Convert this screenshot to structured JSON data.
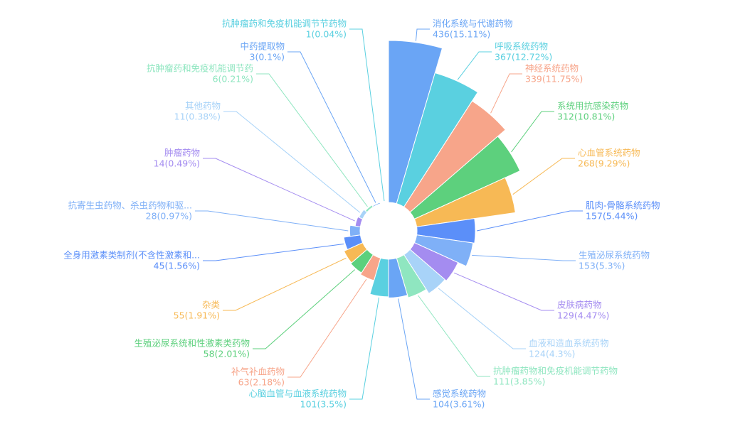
{
  "chart_data": {
    "type": "pie",
    "rose": true,
    "categories": [
      "消化系统与代谢药物",
      "呼吸系统药物",
      "神经系统药物",
      "系统用抗感染药物",
      "心血管系统药物",
      "肌肉-骨骼系统药物",
      "生殖泌尿系统药物",
      "皮肤病药物",
      "血液和造血系统药物",
      "抗肿瘤药物和免疫机能调节药物",
      "感觉系统药物",
      "心脑血管与血液系统药物",
      "补气补血药物",
      "生殖泌尿系统和性激素类药物",
      "杂类",
      "全身用激素类制剂(不含性激素和...",
      "抗寄生虫药物、杀虫药物和驱...",
      "肿瘤药物",
      "其他药物",
      "抗肿瘤药和免疫机能调节药",
      "中药提取物",
      "抗肿瘤药和免疫机能调节节药物"
    ],
    "values": [
      436,
      367,
      339,
      312,
      268,
      157,
      153,
      129,
      124,
      111,
      104,
      101,
      63,
      58,
      55,
      45,
      28,
      14,
      11,
      6,
      3,
      1
    ],
    "value_labels": [
      "436(15.11%)",
      "367(12.72%)",
      "339(11.75%)",
      "312(10.81%)",
      "268(9.29%)",
      "157(5.44%)",
      "153(5.3%)",
      "129(4.47%)",
      "124(4.3%)",
      "111(3.85%)",
      "104(3.61%)",
      "101(3.5%)",
      "63(2.18%)",
      "58(2.01%)",
      "55(1.91%)",
      "45(1.56%)",
      "28(0.97%)",
      "14(0.49%)",
      "11(0.38%)",
      "6(0.21%)",
      "3(0.1%)",
      "1(0.04%)"
    ],
    "colors": [
      "#6aa5f5",
      "#5ad0e0",
      "#f7a58a",
      "#5dd07d",
      "#f7b955",
      "#5b8ff9",
      "#7fb0f7",
      "#a48cf0",
      "#a8d3f8",
      "#8fe6c0",
      "#6aa5f5",
      "#5ad0e0",
      "#f7a58a",
      "#5dd07d",
      "#f7b955",
      "#5b8ff9",
      "#7fb0f7",
      "#a48cf0",
      "#a8d3f8",
      "#8fe6c0",
      "#6aa5f5",
      "#5ad0e0"
    ]
  }
}
